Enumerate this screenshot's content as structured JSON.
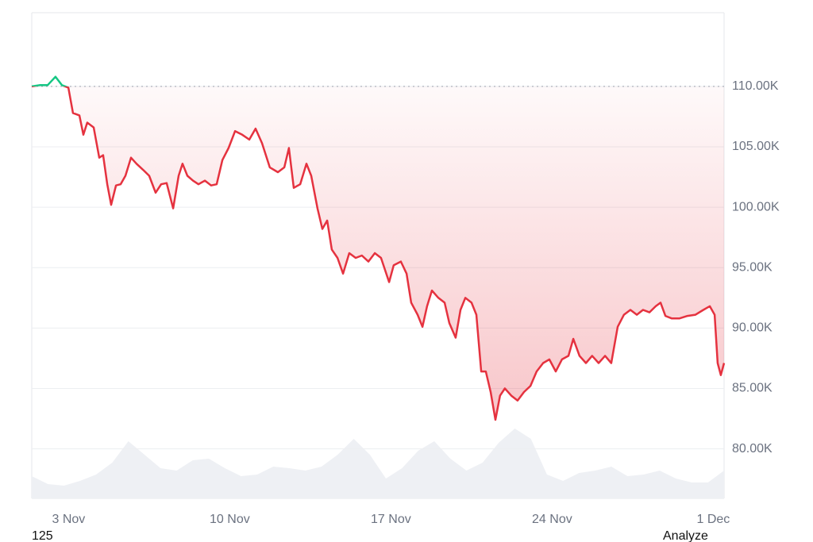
{
  "chart_data": {
    "type": "line",
    "x": [
      1.4,
      1.74,
      2.09,
      2.43,
      2.71,
      2.99,
      3.19,
      3.47,
      3.64,
      3.81,
      4.09,
      4.33,
      4.5,
      4.68,
      4.85,
      5.06,
      5.26,
      5.47,
      5.71,
      5.95,
      6.23,
      6.5,
      6.78,
      7.02,
      7.26,
      7.54,
      7.78,
      7.95,
      8.16,
      8.4,
      8.64,
      8.92,
      9.19,
      9.43,
      9.68,
      9.95,
      10.23,
      10.54,
      10.85,
      11.12,
      11.4,
      11.74,
      12.09,
      12.37,
      12.57,
      12.78,
      13.06,
      13.33,
      13.54,
      13.81,
      14.02,
      14.23,
      14.43,
      14.68,
      14.92,
      15.19,
      15.47,
      15.74,
      16.02,
      16.3,
      16.57,
      16.92,
      17.12,
      17.43,
      17.68,
      17.88,
      18.16,
      18.37,
      18.57,
      18.78,
      19.06,
      19.33,
      19.54,
      19.81,
      20.02,
      20.23,
      20.5,
      20.71,
      20.92,
      21.12,
      21.33,
      21.54,
      21.74,
      21.95,
      22.23,
      22.5,
      22.78,
      23.06,
      23.33,
      23.61,
      23.88,
      24.16,
      24.43,
      24.71,
      24.92,
      25.19,
      25.47,
      25.74,
      26.02,
      26.3,
      26.57,
      26.85,
      27.12,
      27.4,
      27.68,
      27.95,
      28.23,
      28.5,
      28.71,
      28.92,
      29.19,
      29.54,
      29.88,
      30.23,
      30.57,
      30.85,
      31.06,
      31.19,
      31.33,
      31.47
    ],
    "series": [
      {
        "color": "#e5323f",
        "color_above": "#16c784",
        "values": [
          110000,
          110100,
          110100,
          110800,
          110100,
          109900,
          107800,
          107600,
          106000,
          107000,
          106600,
          104100,
          104300,
          101900,
          100200,
          101800,
          101900,
          102600,
          104100,
          103600,
          103100,
          102600,
          101200,
          101900,
          102000,
          99900,
          102600,
          103600,
          102600,
          102200,
          101900,
          102200,
          101800,
          101900,
          103900,
          104900,
          106300,
          106000,
          105600,
          106500,
          105300,
          103300,
          102900,
          103300,
          104900,
          101600,
          101900,
          103600,
          102600,
          99900,
          98200,
          98900,
          96500,
          95800,
          94500,
          96200,
          95800,
          96000,
          95500,
          96200,
          95800,
          93800,
          95200,
          95500,
          94500,
          92100,
          91100,
          90100,
          91800,
          93100,
          92500,
          92100,
          90400,
          89200,
          91500,
          92500,
          92100,
          91100,
          86400,
          86400,
          84700,
          82400,
          84400,
          85000,
          84400,
          84000,
          84700,
          85200,
          86400,
          87100,
          87400,
          86400,
          87400,
          87700,
          89100,
          87700,
          87100,
          87700,
          87100,
          87700,
          87100,
          90100,
          91100,
          91500,
          91100,
          91500,
          91300,
          91800,
          92100,
          91000,
          90800,
          90800,
          91000,
          91100,
          91500,
          91800,
          91100,
          87100,
          86100,
          87100
        ]
      }
    ],
    "baseline": 110000,
    "volume": {
      "color": "#eef0f4",
      "values": [
        28,
        18,
        16,
        22,
        30,
        45,
        72,
        55,
        38,
        35,
        48,
        50,
        38,
        28,
        30,
        40,
        38,
        35,
        40,
        55,
        75,
        55,
        25,
        38,
        60,
        72,
        50,
        35,
        45,
        70,
        88,
        75,
        30,
        22,
        32,
        35,
        40,
        28,
        30,
        35,
        25,
        20,
        20,
        35
      ]
    },
    "y2lim": [
      0,
      100
    ],
    "xlim": [
      1.4,
      31.47
    ],
    "xticks": [
      {
        "value": 3,
        "label": "3 Nov"
      },
      {
        "value": 10,
        "label": "10 Nov"
      },
      {
        "value": 17,
        "label": "17 Nov"
      },
      {
        "value": 24,
        "label": "24 Nov"
      },
      {
        "value": 31,
        "label": "1 Dec"
      }
    ],
    "ylim": [
      75900,
      116100
    ],
    "yticks": [
      {
        "value": 80000,
        "label": "80.00K"
      },
      {
        "value": 85000,
        "label": "85.00K"
      },
      {
        "value": 90000,
        "label": "90.00K"
      },
      {
        "value": 95000,
        "label": "95.00K"
      },
      {
        "value": 100000,
        "label": "100.00K"
      },
      {
        "value": 105000,
        "label": "105.00K"
      },
      {
        "value": 110000,
        "label": "110.00K"
      }
    ],
    "grid": true,
    "footer_left": "125",
    "footer_right": "Analyze"
  }
}
